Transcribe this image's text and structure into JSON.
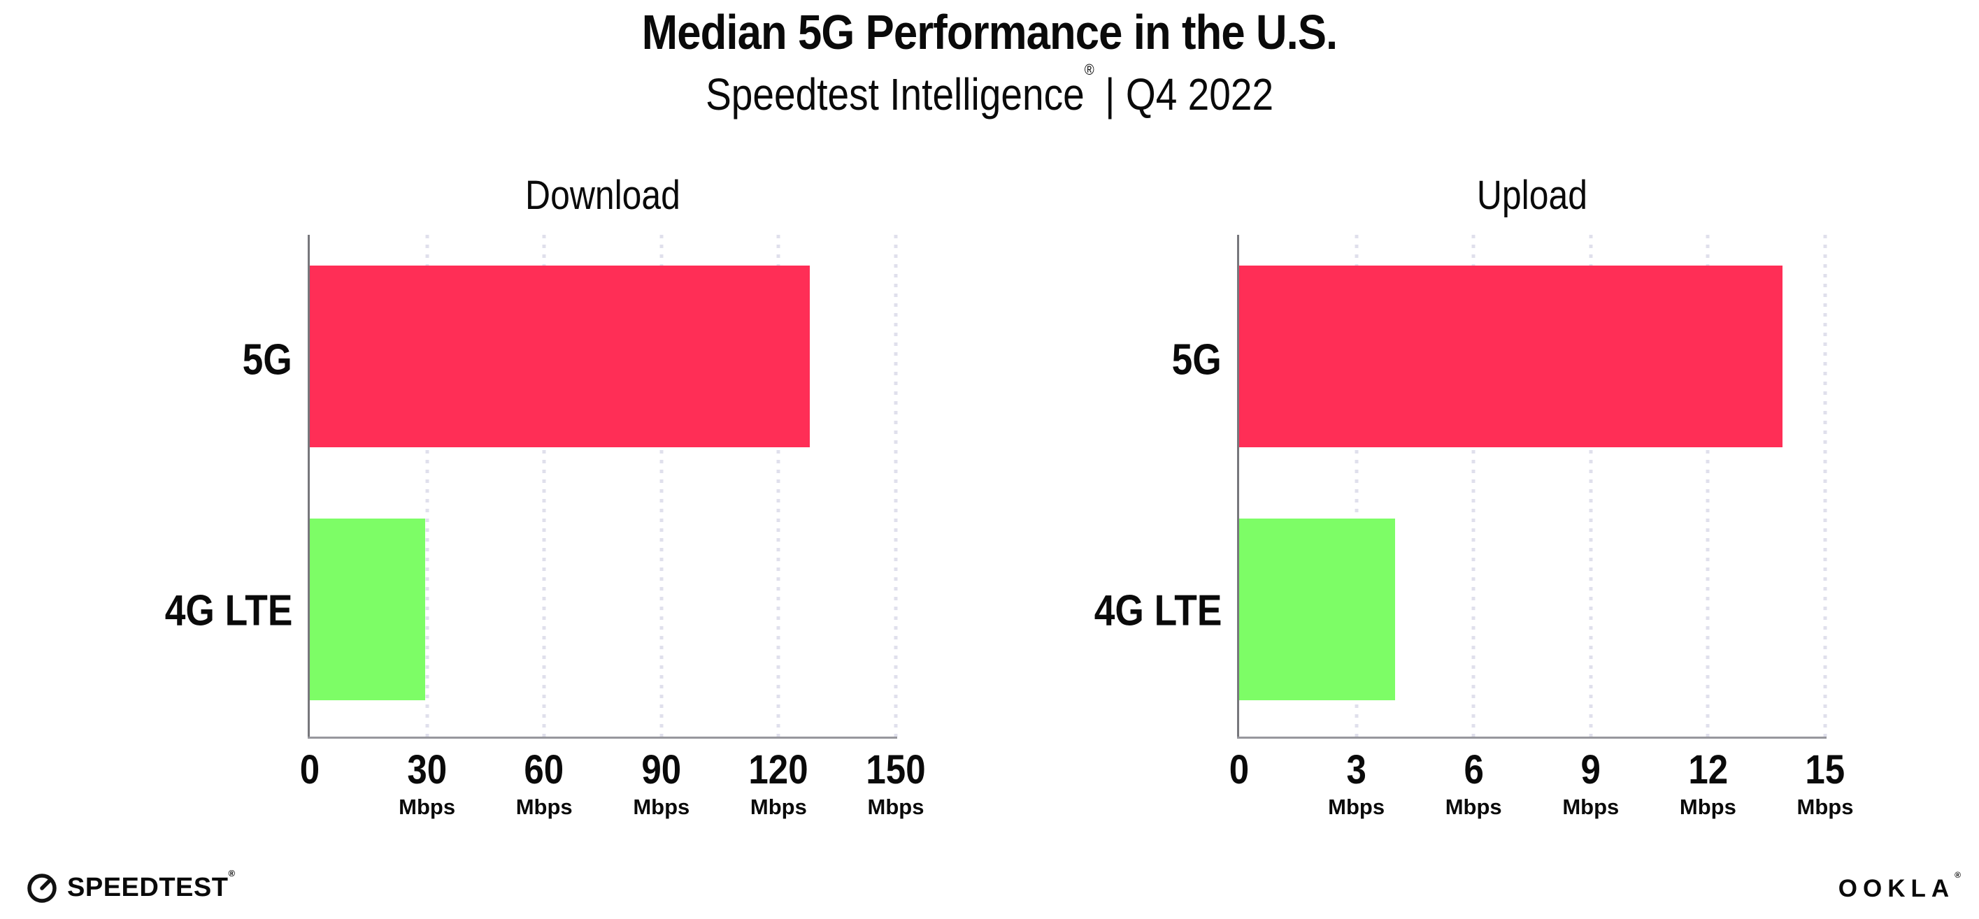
{
  "page": {
    "title": "Median 5G Performance in the U.S.",
    "subtitle_product": "Speedtest Intelligence",
    "subtitle_reg": "®",
    "subtitle_divider": "|",
    "subtitle_period": "Q4 2022"
  },
  "colors": {
    "bar_5g": "#ff2e56",
    "bar_4g_lte": "#7dfd66",
    "axis_line": "#77777c",
    "baseline": "#97979d",
    "grid_dot": "#e0e0ec",
    "text": "#0a0a0a"
  },
  "chart_data": [
    {
      "type": "bar",
      "orientation": "horizontal",
      "title": "Download",
      "categories": [
        "5G",
        "4G LTE"
      ],
      "values": [
        128,
        29.5
      ],
      "unit": "Mbps",
      "xlim": [
        0,
        150
      ],
      "ticks": [
        0,
        30,
        60,
        90,
        120,
        150
      ],
      "tick_unit_labels": [
        "",
        "Mbps",
        "Mbps",
        "Mbps",
        "Mbps",
        "Mbps"
      ],
      "bar_colors": [
        "#ff2e56",
        "#7dfd66"
      ],
      "grid": "vertical-dotted",
      "legend": "none"
    },
    {
      "type": "bar",
      "orientation": "horizontal",
      "title": "Upload",
      "categories": [
        "5G",
        "4G LTE"
      ],
      "values": [
        13.9,
        4
      ],
      "unit": "Mbps",
      "xlim": [
        0,
        15
      ],
      "ticks": [
        0,
        3,
        6,
        9,
        12,
        15
      ],
      "tick_unit_labels": [
        "",
        "Mbps",
        "Mbps",
        "Mbps",
        "Mbps",
        "Mbps"
      ],
      "bar_colors": [
        "#ff2e56",
        "#7dfd66"
      ],
      "grid": "vertical-dotted",
      "legend": "none"
    }
  ],
  "footer": {
    "speedtest_label": "SPEEDTEST",
    "speedtest_reg": "®",
    "ookla_label": "OOKLA",
    "ookla_reg": "®"
  }
}
